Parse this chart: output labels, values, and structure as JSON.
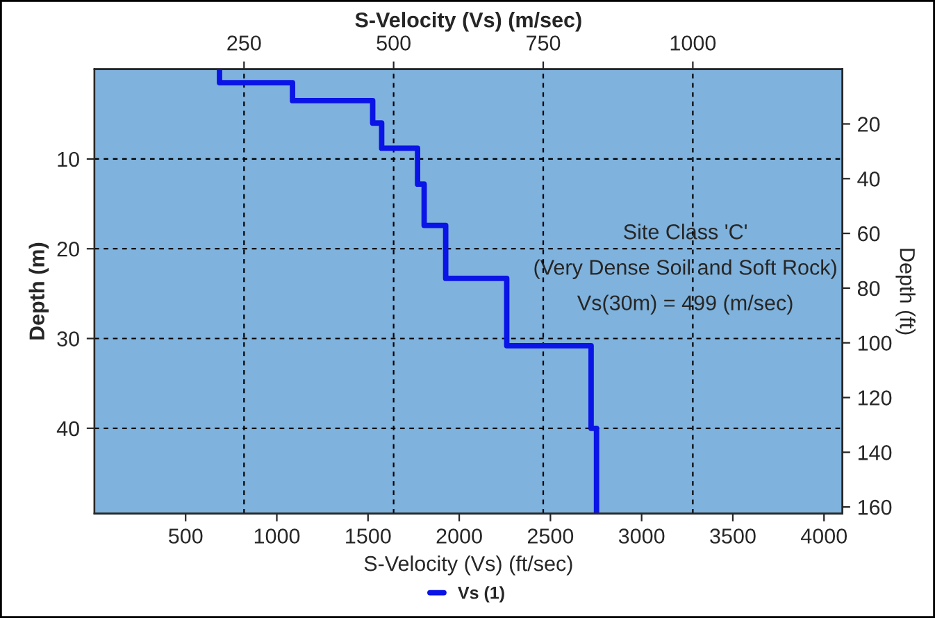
{
  "chart_data": {
    "type": "line",
    "xlabel": "S-Velocity (Vs) (ft/sec)",
    "x2label": "S-Velocity (Vs) (m/sec)",
    "ylabel": "Depth (m)",
    "y2label": "Depth (ft)",
    "xlim": [
      0,
      4101
    ],
    "xticks": [
      500,
      1000,
      1500,
      2000,
      2500,
      3000,
      3500,
      4000
    ],
    "x2lim": [
      0,
      1250
    ],
    "x2ticks": [
      250,
      500,
      750,
      1000
    ],
    "ylim": [
      49.5,
      0
    ],
    "yticks": [
      10,
      20,
      30,
      40
    ],
    "y2lim": [
      162.4,
      0
    ],
    "y2ticks": [
      20,
      40,
      60,
      80,
      100,
      120,
      140,
      160
    ],
    "series": [
      {
        "name": "Vs (1)",
        "color": "#0a14e6",
        "axis": "x2",
        "x": [
          209,
          209,
          331,
          331,
          465,
          465,
          480,
          480,
          540,
          540,
          551,
          551,
          587,
          587,
          689,
          689,
          830,
          830,
          839,
          839
        ],
        "values": [
          0,
          1.5,
          1.5,
          3.5,
          3.5,
          6,
          6,
          8.8,
          8.8,
          12.8,
          12.8,
          17.4,
          17.4,
          23.3,
          23.3,
          30.8,
          30.8,
          40.0,
          40.0,
          49.5
        ]
      }
    ],
    "annotations": [
      "Site Class 'C'",
      "(Very Dense Soil and Soft Rock)",
      "Vs(30m) = 499 (m/sec)"
    ],
    "grid": true,
    "line_style": "solid",
    "marker": "none",
    "legend": "bottom"
  }
}
